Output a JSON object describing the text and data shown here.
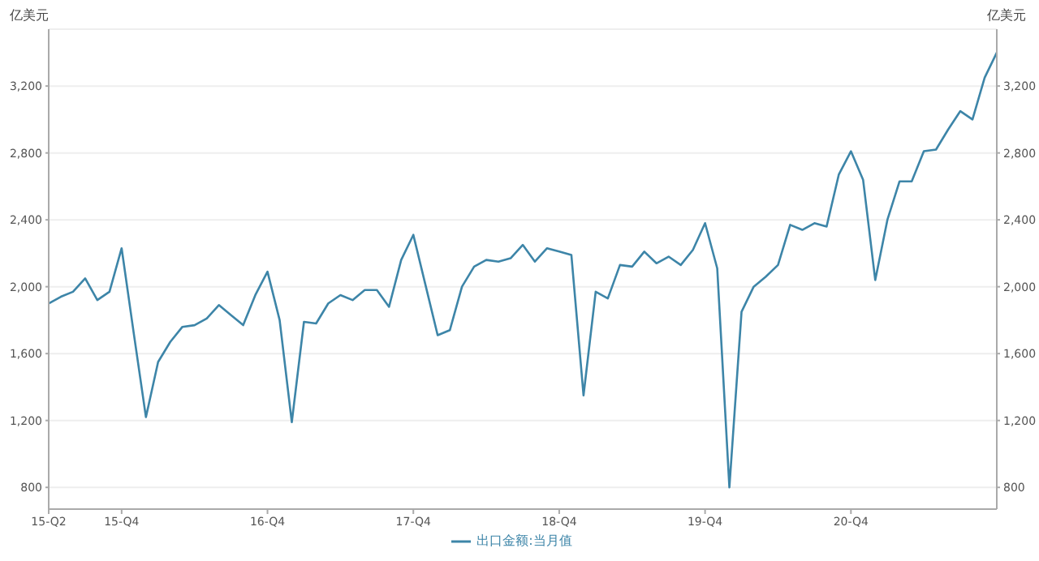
{
  "chart_data": {
    "type": "line",
    "categories": [
      "15-Q2",
      null,
      null,
      null,
      null,
      null,
      "15-Q4",
      null,
      null,
      null,
      null,
      null,
      null,
      null,
      null,
      null,
      null,
      null,
      "16-Q4",
      null,
      null,
      null,
      null,
      null,
      null,
      null,
      null,
      null,
      null,
      null,
      "17-Q4",
      null,
      null,
      null,
      null,
      null,
      null,
      null,
      null,
      null,
      null,
      null,
      "18-Q4",
      null,
      null,
      null,
      null,
      null,
      null,
      null,
      null,
      null,
      null,
      null,
      "19-Q4",
      null,
      null,
      null,
      null,
      null,
      null,
      null,
      null,
      null,
      null,
      null,
      "20-Q4",
      null,
      null,
      null,
      null,
      null,
      null,
      null,
      null,
      null,
      null,
      null,
      null
    ],
    "series": [
      {
        "name": "出口金额:当月值",
        "color": "#3d85a8",
        "values": [
          1900,
          1940,
          1970,
          2050,
          1920,
          1970,
          2230,
          1720,
          1220,
          1550,
          1670,
          1760,
          1770,
          1810,
          1890,
          1830,
          1770,
          1950,
          2090,
          1800,
          1190,
          1790,
          1780,
          1900,
          1950,
          1920,
          1980,
          1980,
          1880,
          2160,
          2310,
          2010,
          1710,
          1740,
          2000,
          2120,
          2160,
          2150,
          2170,
          2250,
          2150,
          2230,
          2210,
          2190,
          1350,
          1970,
          1930,
          2130,
          2120,
          2210,
          2140,
          2180,
          2130,
          2220,
          2380,
          2110,
          800,
          1850,
          2000,
          2060,
          2130,
          2370,
          2340,
          2380,
          2360,
          2670,
          2810,
          2640,
          2040,
          2400,
          2630,
          2630,
          2810,
          2820,
          2940,
          3050,
          3000,
          3250,
          3400
        ]
      }
    ],
    "ylabel": "亿美元",
    "y2label": "亿美元",
    "ylim": [
      670,
      3540
    ],
    "yticks": [
      {
        "value": 800,
        "label": "800"
      },
      {
        "value": 1200,
        "label": "1,200"
      },
      {
        "value": 1600,
        "label": "1,600"
      },
      {
        "value": 2000,
        "label": "2,000"
      },
      {
        "value": 2400,
        "label": "2,400"
      },
      {
        "value": 2800,
        "label": "2,800"
      },
      {
        "value": 3200,
        "label": "3,200"
      }
    ],
    "y2lim": [
      670,
      3540
    ],
    "y2ticks": [
      {
        "value": 800,
        "label": "800"
      },
      {
        "value": 1200,
        "label": "1,200"
      },
      {
        "value": 1600,
        "label": "1,600"
      },
      {
        "value": 2000,
        "label": "2,000"
      },
      {
        "value": 2400,
        "label": "2,400"
      },
      {
        "value": 2800,
        "label": "2,800"
      },
      {
        "value": 3200,
        "label": "3,200"
      }
    ],
    "grid": "y",
    "legend": "bottom",
    "marker": "none",
    "line_style": "solid"
  }
}
